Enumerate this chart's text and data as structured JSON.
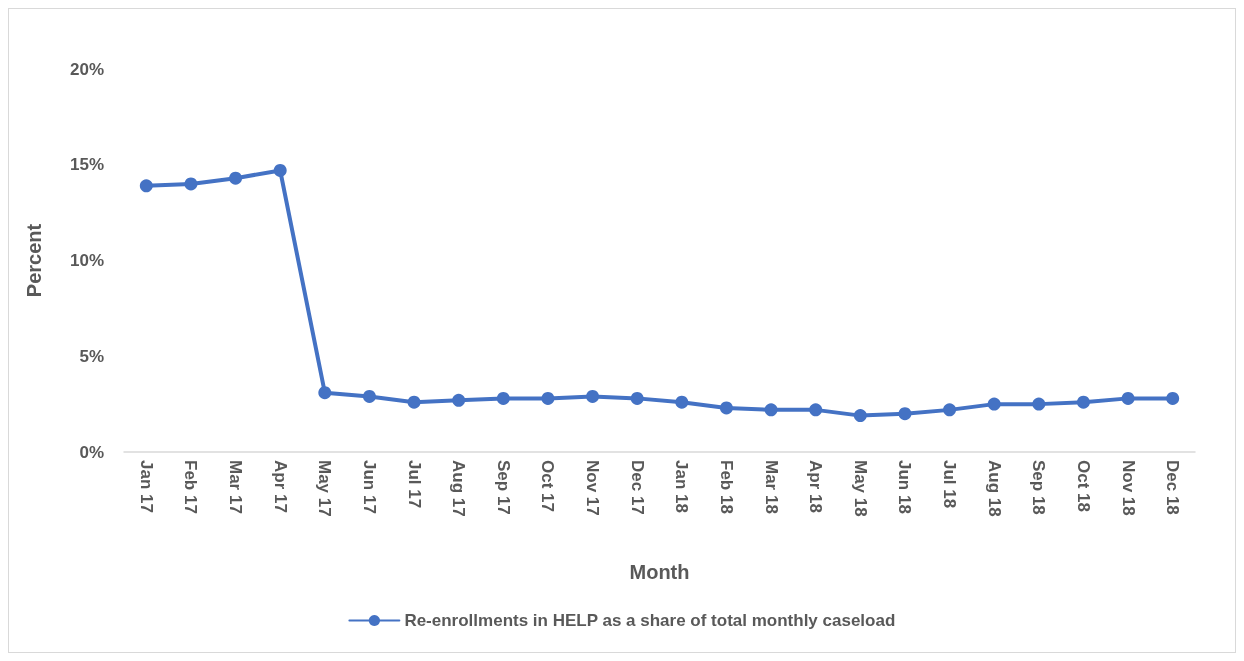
{
  "chart_data": {
    "type": "line",
    "xlabel": "Month",
    "ylabel": "Percent",
    "categories": [
      "Jan 17",
      "Feb 17",
      "Mar 17",
      "Apr 17",
      "May 17",
      "Jun 17",
      "Jul 17",
      "Aug 17",
      "Sep 17",
      "Oct 17",
      "Nov 17",
      "Dec 17",
      "Jan 18",
      "Feb 18",
      "Mar 18",
      "Apr 18",
      "May 18",
      "Jun 18",
      "Jul 18",
      "Aug 18",
      "Sep 18",
      "Oct 18",
      "Nov 18",
      "Dec 18"
    ],
    "series": [
      {
        "name": "Re-enrollments in HELP as a share of total monthly caseload",
        "color": "#4472c4",
        "values": [
          13.9,
          14.0,
          14.3,
          14.7,
          3.1,
          2.9,
          2.6,
          2.7,
          2.8,
          2.8,
          2.9,
          2.8,
          2.6,
          2.3,
          2.2,
          2.2,
          1.9,
          2.0,
          2.2,
          2.5,
          2.5,
          2.6,
          2.8,
          2.8
        ]
      }
    ],
    "ylim": [
      0,
      20
    ],
    "yticks": [
      {
        "value": 0,
        "label": "0%"
      },
      {
        "value": 5,
        "label": "5%"
      },
      {
        "value": 10,
        "label": "10%"
      },
      {
        "value": 15,
        "label": "15%"
      },
      {
        "value": 20,
        "label": "20%"
      }
    ],
    "grid": false,
    "legend": "bottom",
    "marker": "circle",
    "line_style": "solid"
  }
}
